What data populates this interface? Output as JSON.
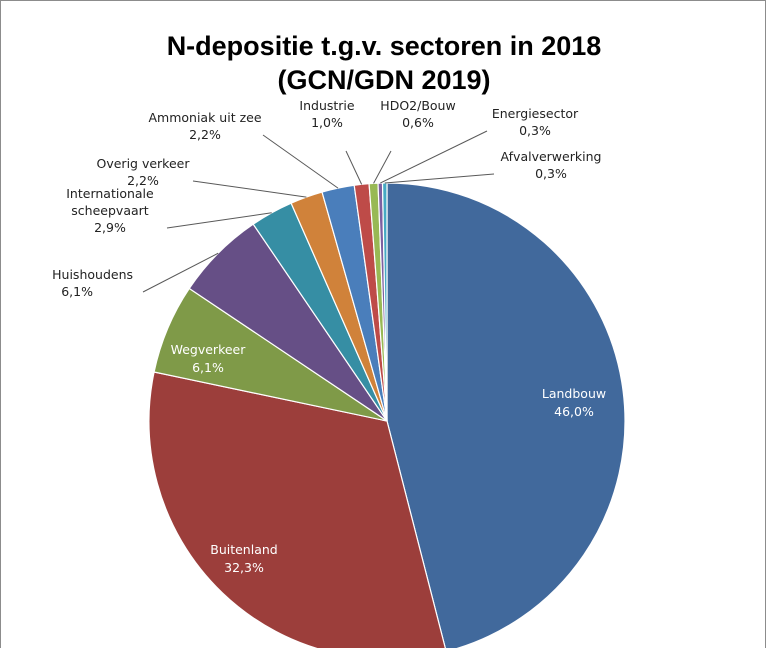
{
  "chart_data": {
    "type": "pie",
    "title_lines": [
      "N-depositie t.g.v. sectoren in 2018",
      "(GCN/GDN 2019)"
    ],
    "start_angle_deg": 0,
    "direction": "clockwise",
    "slices": [
      {
        "label": "Landbouw",
        "value": 46.0,
        "value_label": "46,0%",
        "color": "#41699c",
        "placement": "inside"
      },
      {
        "label": "Buitenland",
        "value": 32.3,
        "value_label": "32,3%",
        "color": "#9c3e3b",
        "placement": "inside"
      },
      {
        "label": "Wegverkeer",
        "value": 6.1,
        "value_label": "6,1%",
        "color": "#7f9a48",
        "placement": "inside"
      },
      {
        "label": "Huishoudens",
        "value": 6.1,
        "value_label": "6,1%",
        "color": "#664f86",
        "placement": "outside"
      },
      {
        "label": "Internationale scheepvaart",
        "value": 2.9,
        "value_label": "2,9%",
        "color": "#368ea4",
        "placement": "outside"
      },
      {
        "label": "Overig verkeer",
        "value": 2.2,
        "value_label": "2,2%",
        "color": "#d0823a",
        "placement": "outside"
      },
      {
        "label": "Ammoniak uit zee",
        "value": 2.2,
        "value_label": "2,2%",
        "color": "#4a7ebb",
        "placement": "outside"
      },
      {
        "label": "Industrie",
        "value": 1.0,
        "value_label": "1,0%",
        "color": "#be4b48",
        "placement": "outside"
      },
      {
        "label": "HDO2/Bouw",
        "value": 0.6,
        "value_label": "0,6%",
        "color": "#98b954",
        "placement": "outside"
      },
      {
        "label": "Energiesector",
        "value": 0.3,
        "value_label": "0,3%",
        "color": "#7d60a0",
        "placement": "outside"
      },
      {
        "label": "Afvalverwerking",
        "value": 0.3,
        "value_label": "0,3%",
        "color": "#46aac4",
        "placement": "outside"
      }
    ]
  }
}
